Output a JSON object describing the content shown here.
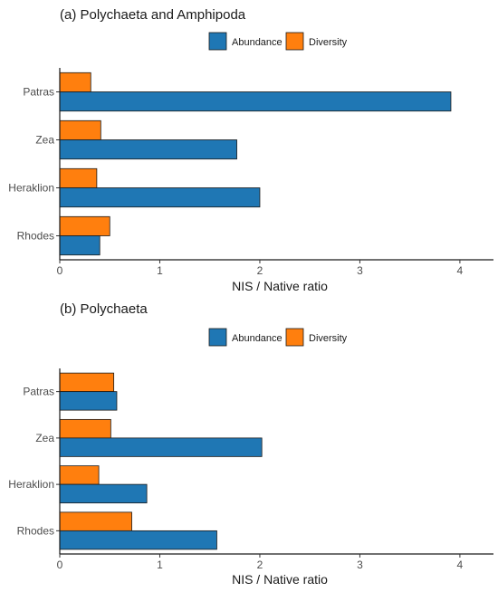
{
  "chart_data": [
    {
      "type": "bar",
      "orientation": "horizontal",
      "title": "(a) Polychaeta and Amphipoda",
      "xlabel": "NIS / Native ratio",
      "ylabel": "",
      "categories": [
        "Patras",
        "Zea",
        "Heraklion",
        "Rhodes"
      ],
      "series": [
        {
          "name": "Diversity",
          "color": "#ff7f0e",
          "values": [
            0.31,
            0.41,
            0.37,
            0.5
          ]
        },
        {
          "name": "Abundance",
          "color": "#1f77b4",
          "values": [
            3.91,
            1.77,
            2.0,
            0.4
          ]
        }
      ],
      "legend_order": [
        "Abundance",
        "Diversity"
      ],
      "legend_position": "top",
      "xlim": [
        0,
        4.2
      ],
      "xticks": [
        0,
        1,
        2,
        3,
        4
      ],
      "grid": false
    },
    {
      "type": "bar",
      "orientation": "horizontal",
      "title": "(b) Polychaeta",
      "xlabel": "NIS / Native ratio",
      "ylabel": "",
      "categories": [
        "Patras",
        "Zea",
        "Heraklion",
        "Rhodes"
      ],
      "series": [
        {
          "name": "Diversity",
          "color": "#ff7f0e",
          "values": [
            0.54,
            0.51,
            0.39,
            0.72
          ]
        },
        {
          "name": "Abundance",
          "color": "#1f77b4",
          "values": [
            0.57,
            2.02,
            0.87,
            1.57
          ]
        }
      ],
      "legend_order": [
        "Abundance",
        "Diversity"
      ],
      "legend_position": "top",
      "xlim": [
        0,
        4.2
      ],
      "xticks": [
        0,
        1,
        2,
        3,
        4
      ],
      "grid": false
    }
  ]
}
